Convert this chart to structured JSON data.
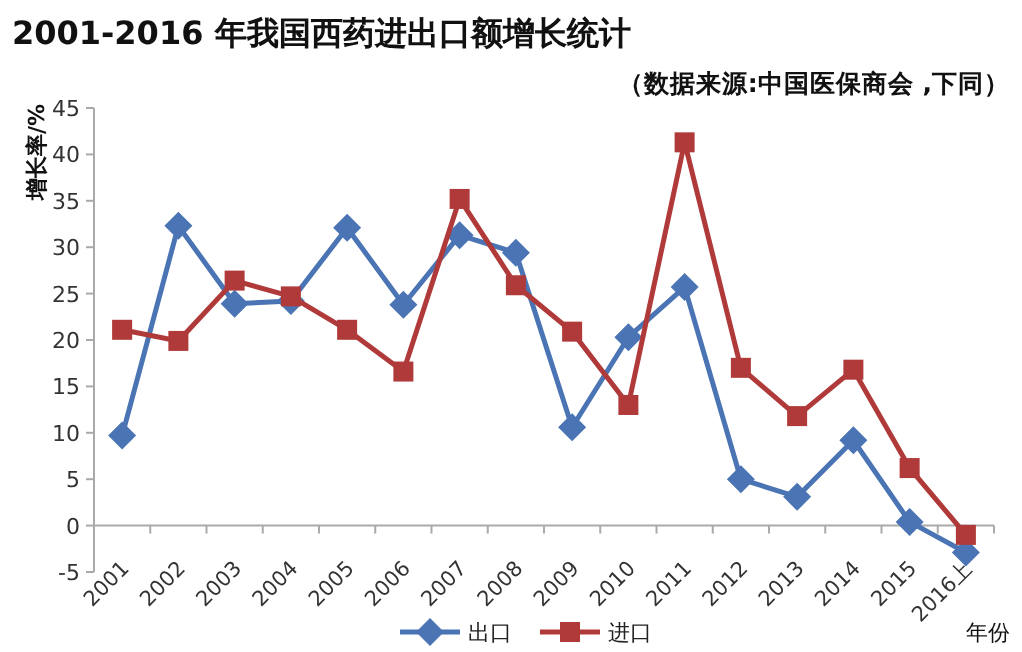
{
  "chart_data": {
    "type": "line",
    "title": "2001-2016 年我国西药进出口额增长统计",
    "subtitle": "（数据来源:中国医保商会 ,下同）",
    "ylabel": "增长率/%",
    "xlabel": "年份",
    "categories": [
      "2001",
      "2002",
      "2003",
      "2004",
      "2005",
      "2006",
      "2007",
      "2008",
      "2009",
      "2010",
      "2011",
      "2012",
      "2013",
      "2014",
      "2015",
      "2016上"
    ],
    "series": [
      {
        "name": "出口",
        "color": "#4a74b4",
        "marker": "diamond",
        "values": [
          9.7,
          32.3,
          23.9,
          24.2,
          32.1,
          23.8,
          31.3,
          29.4,
          10.6,
          20.3,
          25.7,
          5.0,
          3.1,
          9.2,
          0.4,
          -2.9
        ]
      },
      {
        "name": "进口",
        "color": "#b03a3a",
        "marker": "square",
        "values": [
          21.1,
          19.9,
          26.4,
          24.7,
          21.1,
          16.6,
          35.2,
          25.9,
          20.9,
          13.0,
          41.3,
          17.0,
          11.8,
          16.8,
          6.2,
          -1.0
        ]
      }
    ],
    "ylim": [
      -5,
      45
    ],
    "yticks": [
      -5,
      0,
      5,
      10,
      15,
      20,
      25,
      30,
      35,
      40,
      45
    ],
    "grid": false,
    "legend": "bottom"
  }
}
